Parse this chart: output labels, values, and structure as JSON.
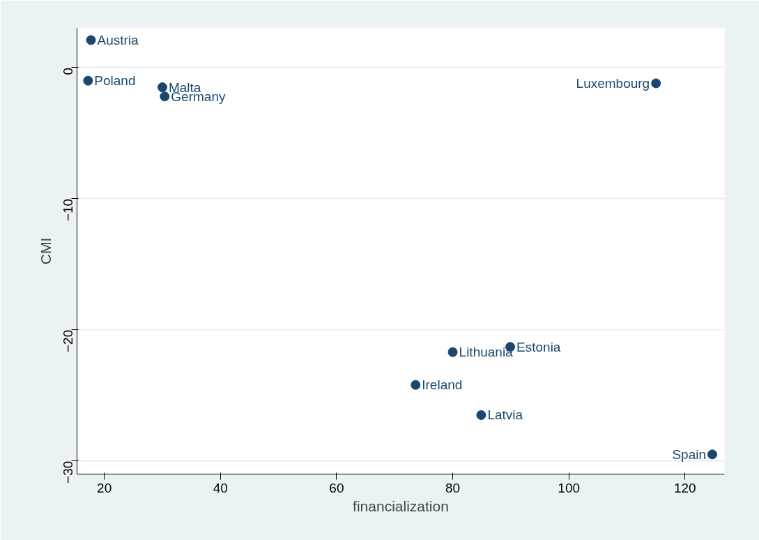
{
  "chart_data": {
    "type": "scatter",
    "xlabel": "financialization",
    "ylabel": "CMI",
    "x": [
      17.7,
      17.2,
      30.0,
      30.4,
      115.0,
      89.9,
      80.0,
      73.6,
      84.9,
      124.7
    ],
    "values": [
      2.1,
      -1.0,
      -1.5,
      -2.2,
      -1.2,
      -21.3,
      -21.7,
      -24.2,
      -26.5,
      -29.5
    ],
    "color": "#1a476f",
    "marker": "circle",
    "grid": "y",
    "xlim": [
      15.3,
      126.8
    ],
    "ylim": [
      -31.0,
      3.0
    ],
    "xticks": [
      20,
      40,
      60,
      80,
      100,
      120
    ],
    "yticks": [
      -30,
      -20,
      -10,
      0
    ],
    "annotations": [
      {
        "text": "Austria",
        "x": 17.7,
        "y": 2.1
      },
      {
        "text": "Poland",
        "x": 17.2,
        "y": -1.0
      },
      {
        "text": "Malta",
        "x": 30.0,
        "y": -1.5
      },
      {
        "text": "Germany",
        "x": 30.4,
        "y": -2.2
      },
      {
        "text": "Luxembourg",
        "x": 115.0,
        "y": -1.2
      },
      {
        "text": "Estonia",
        "x": 89.9,
        "y": -21.3
      },
      {
        "text": "Lithuania",
        "x": 80.0,
        "y": -21.7
      },
      {
        "text": "Ireland",
        "x": 73.6,
        "y": -24.2
      },
      {
        "text": "Latvia",
        "x": 84.9,
        "y": -26.5
      },
      {
        "text": "Spain",
        "x": 124.7,
        "y": -29.5
      }
    ]
  }
}
